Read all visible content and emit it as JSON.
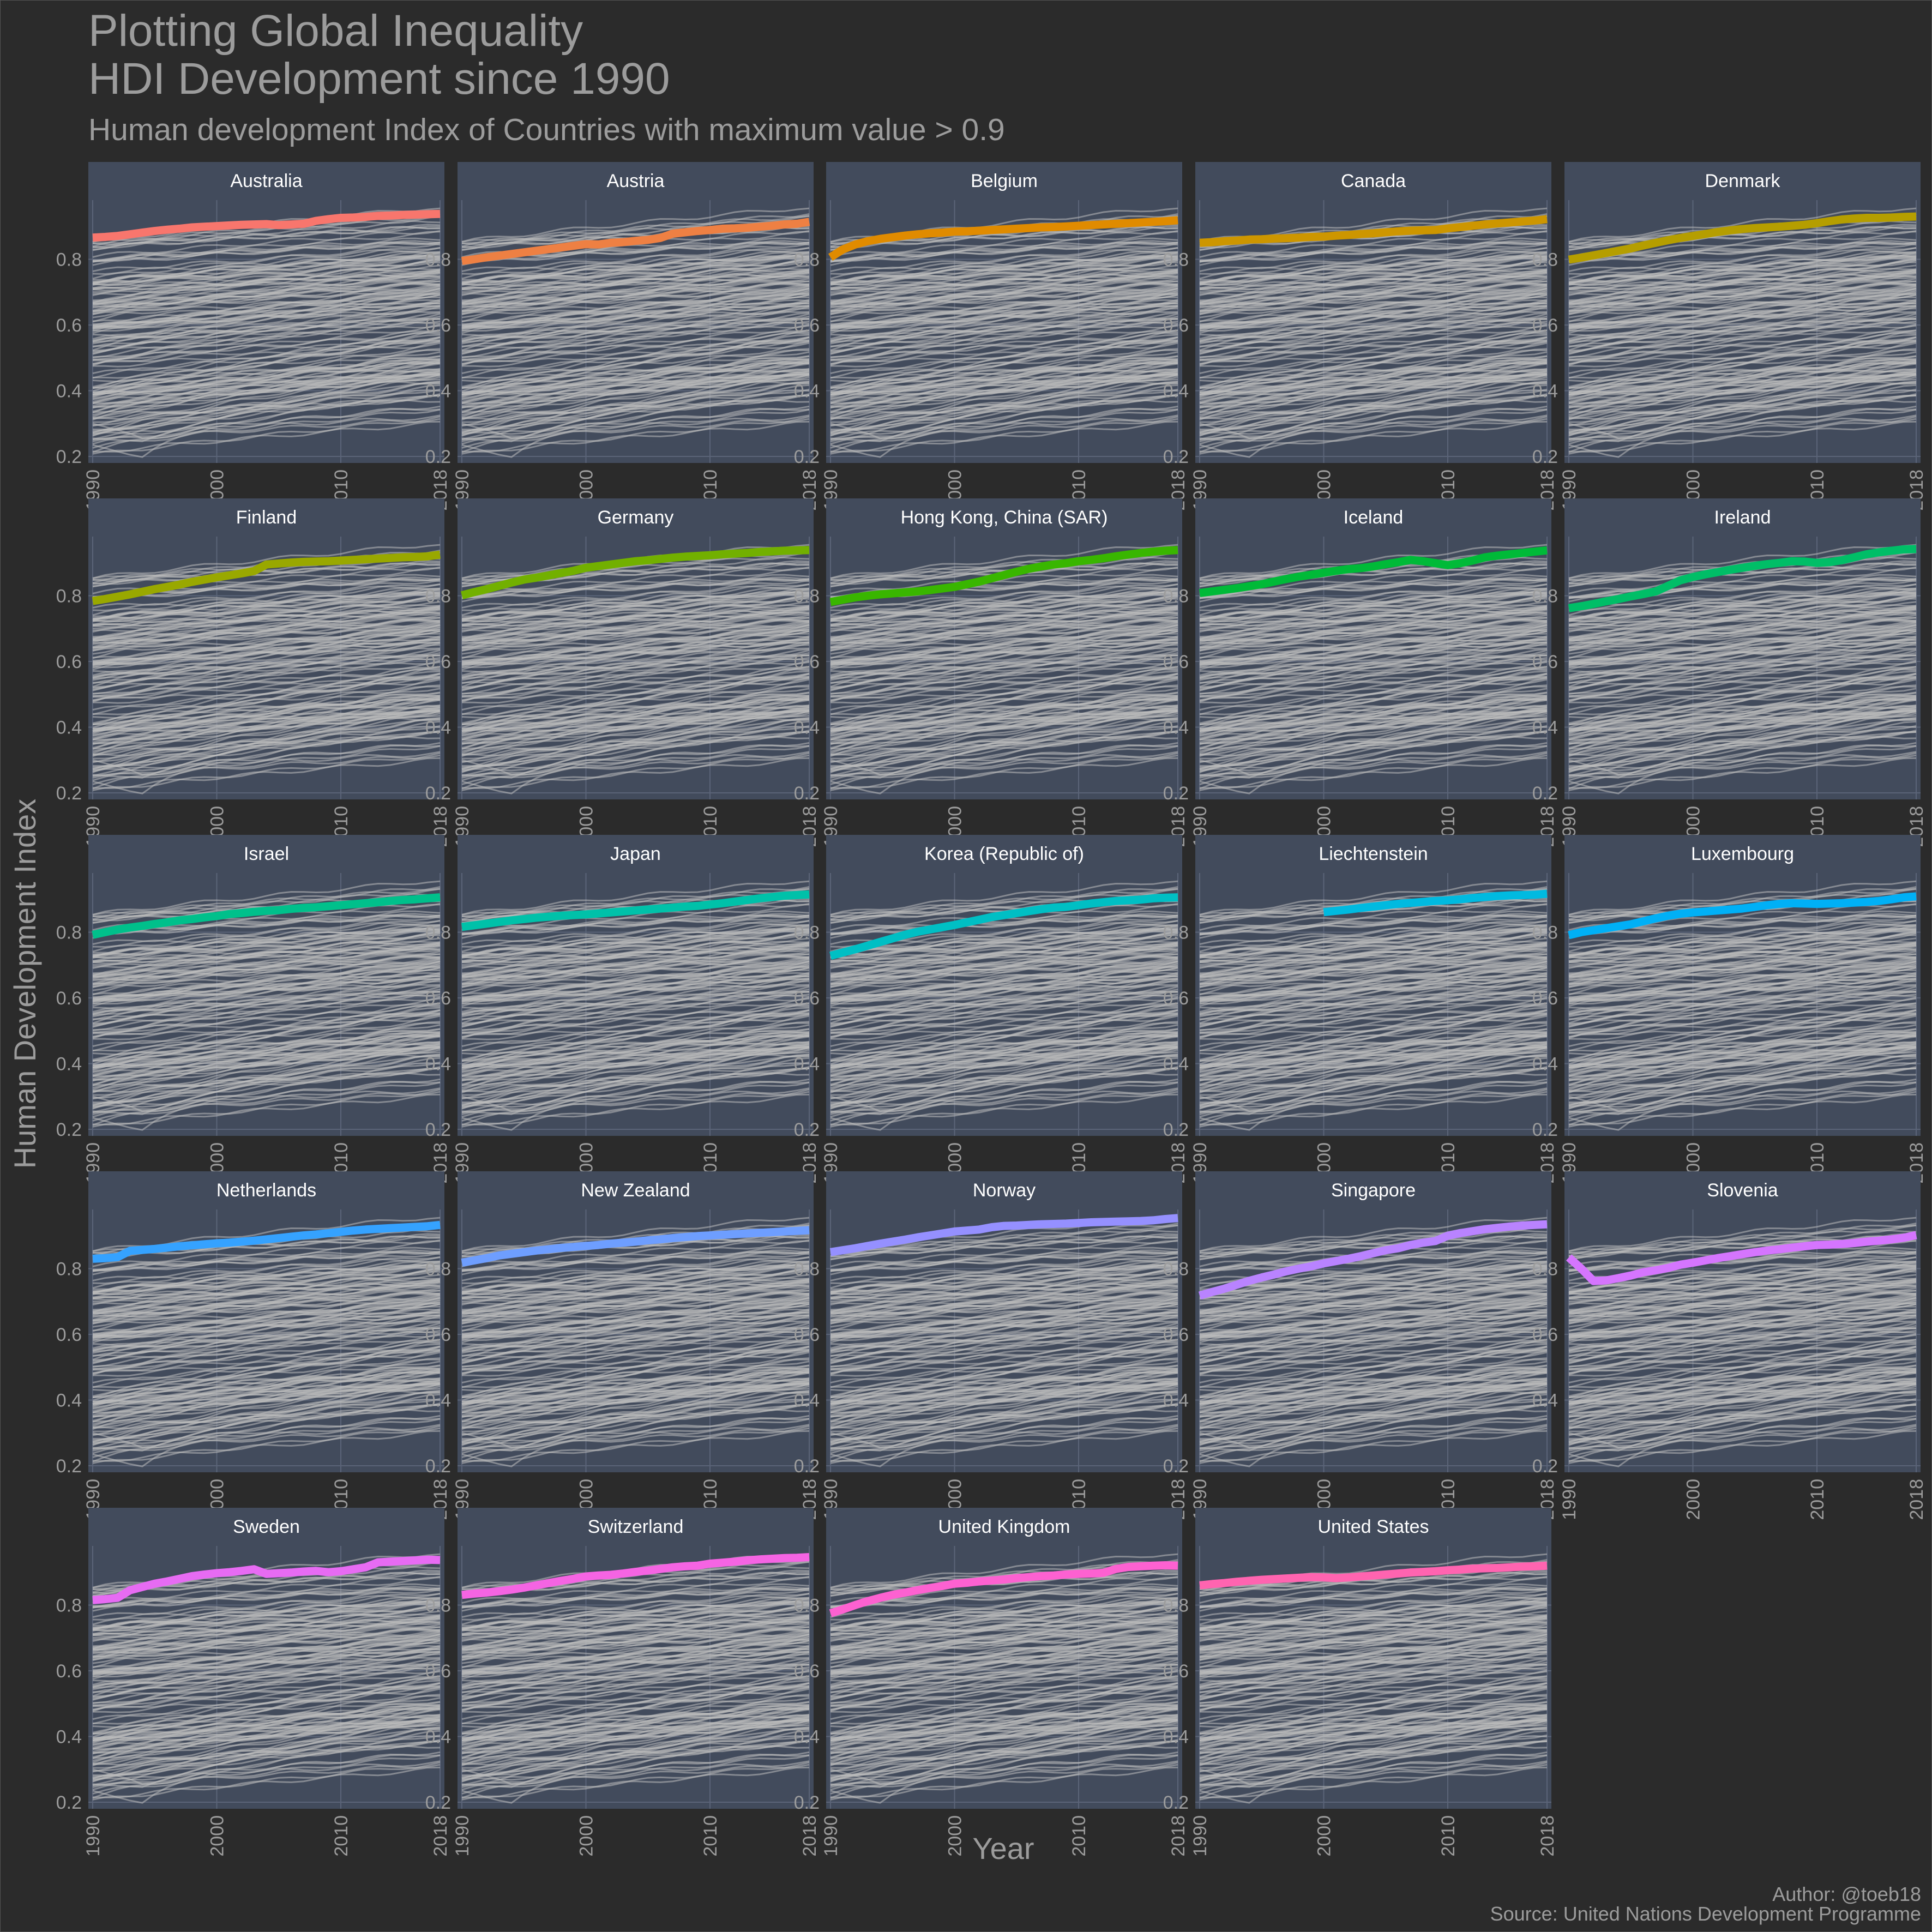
{
  "page": {
    "title_line_1": "Plotting Global Inequality",
    "title_line_2": "HDI Development since 1990",
    "subtitle": "Human development Index of Countries with maximum value > 0.9",
    "x_axis_title": "Year",
    "y_axis_title": "Human Development Index",
    "caption_author": "Author: @toeb18",
    "caption_source": "Source: United Nations Development Programme",
    "colors": {
      "background": "#2b2b2b",
      "panel": "#424b5c",
      "strip": "#424b5c",
      "grid": "#5b6478",
      "background_lines": "#bdbdbd",
      "text": "#9c9c9c"
    }
  },
  "chart_data": {
    "type": "line",
    "facet_by": "country",
    "facet_columns": 5,
    "x": [
      1990,
      1991,
      1992,
      1993,
      1994,
      1995,
      1996,
      1997,
      1998,
      1999,
      2000,
      2001,
      2002,
      2003,
      2004,
      2005,
      2006,
      2007,
      2008,
      2009,
      2010,
      2011,
      2012,
      2013,
      2014,
      2015,
      2016,
      2017,
      2018
    ],
    "xlim": [
      1990,
      2018
    ],
    "x_ticks": [
      1990,
      2000,
      2010,
      2018
    ],
    "ylim": [
      0.18,
      0.98
    ],
    "y_ticks": [
      0.2,
      0.4,
      0.6,
      0.8
    ],
    "grid": true,
    "legend": "none",
    "background_series_note_visible": false,
    "series": [
      {
        "name": "Australia",
        "color": "#f8766d",
        "values": [
          0.866,
          0.868,
          0.871,
          0.876,
          0.881,
          0.886,
          0.89,
          0.893,
          0.897,
          0.899,
          0.901,
          0.903,
          0.905,
          0.906,
          0.907,
          0.904,
          0.906,
          0.908,
          0.917,
          0.922,
          0.926,
          0.927,
          0.929,
          0.932,
          0.933,
          0.935,
          0.936,
          0.937,
          0.938
        ]
      },
      {
        "name": "Austria",
        "color": "#ee8043",
        "values": [
          0.795,
          0.8,
          0.806,
          0.811,
          0.816,
          0.821,
          0.826,
          0.831,
          0.836,
          0.841,
          0.846,
          0.845,
          0.85,
          0.852,
          0.856,
          0.859,
          0.865,
          0.878,
          0.882,
          0.886,
          0.889,
          0.893,
          0.894,
          0.896,
          0.899,
          0.902,
          0.906,
          0.908,
          0.914
        ]
      },
      {
        "name": "Belgium",
        "color": "#e08b00",
        "values": [
          0.806,
          0.83,
          0.845,
          0.855,
          0.862,
          0.867,
          0.872,
          0.876,
          0.879,
          0.881,
          0.884,
          0.885,
          0.887,
          0.889,
          0.891,
          0.893,
          0.895,
          0.897,
          0.898,
          0.9,
          0.902,
          0.904,
          0.906,
          0.908,
          0.91,
          0.912,
          0.914,
          0.916,
          0.919
        ]
      },
      {
        "name": "Canada",
        "color": "#cd9600",
        "values": [
          0.85,
          0.852,
          0.855,
          0.857,
          0.86,
          0.861,
          0.863,
          0.864,
          0.866,
          0.868,
          0.869,
          0.872,
          0.874,
          0.877,
          0.879,
          0.882,
          0.885,
          0.887,
          0.888,
          0.889,
          0.894,
          0.898,
          0.902,
          0.906,
          0.909,
          0.912,
          0.915,
          0.918,
          0.922
        ]
      },
      {
        "name": "Denmark",
        "color": "#b59e00",
        "values": [
          0.799,
          0.805,
          0.812,
          0.819,
          0.826,
          0.833,
          0.842,
          0.85,
          0.858,
          0.865,
          0.871,
          0.877,
          0.883,
          0.888,
          0.892,
          0.895,
          0.897,
          0.899,
          0.902,
          0.905,
          0.91,
          0.916,
          0.921,
          0.924,
          0.926,
          0.926,
          0.927,
          0.929,
          0.93
        ]
      },
      {
        "name": "Finland",
        "color": "#99a800",
        "values": [
          0.784,
          0.79,
          0.797,
          0.804,
          0.812,
          0.82,
          0.827,
          0.834,
          0.842,
          0.849,
          0.856,
          0.862,
          0.868,
          0.875,
          0.895,
          0.898,
          0.901,
          0.903,
          0.904,
          0.905,
          0.907,
          0.909,
          0.911,
          0.913,
          0.915,
          0.917,
          0.918,
          0.92,
          0.925
        ]
      },
      {
        "name": "Germany",
        "color": "#72b000",
        "values": [
          0.801,
          0.811,
          0.82,
          0.83,
          0.84,
          0.849,
          0.855,
          0.862,
          0.869,
          0.876,
          0.885,
          0.89,
          0.895,
          0.9,
          0.905,
          0.908,
          0.912,
          0.916,
          0.919,
          0.921,
          0.923,
          0.926,
          0.928,
          0.93,
          0.933,
          0.935,
          0.937,
          0.938,
          0.939
        ]
      },
      {
        "name": "Hong Kong, China (SAR)",
        "color": "#39b600",
        "values": [
          0.781,
          0.788,
          0.795,
          0.8,
          0.804,
          0.807,
          0.81,
          0.813,
          0.817,
          0.822,
          0.827,
          0.835,
          0.843,
          0.853,
          0.863,
          0.873,
          0.882,
          0.889,
          0.895,
          0.899,
          0.905,
          0.909,
          0.914,
          0.92,
          0.925,
          0.93,
          0.934,
          0.937,
          0.939
        ]
      },
      {
        "name": "Iceland",
        "color": "#00ba38",
        "values": [
          0.808,
          0.813,
          0.818,
          0.823,
          0.829,
          0.835,
          0.843,
          0.851,
          0.858,
          0.864,
          0.87,
          0.876,
          0.881,
          0.884,
          0.889,
          0.896,
          0.902,
          0.909,
          0.905,
          0.899,
          0.893,
          0.899,
          0.907,
          0.917,
          0.922,
          0.926,
          0.93,
          0.934,
          0.938
        ]
      },
      {
        "name": "Ireland",
        "color": "#00be67",
        "values": [
          0.762,
          0.768,
          0.775,
          0.783,
          0.79,
          0.798,
          0.805,
          0.813,
          0.83,
          0.847,
          0.857,
          0.865,
          0.872,
          0.879,
          0.885,
          0.891,
          0.896,
          0.9,
          0.905,
          0.904,
          0.9,
          0.902,
          0.908,
          0.917,
          0.926,
          0.932,
          0.937,
          0.941,
          0.942
        ]
      },
      {
        "name": "Israel",
        "color": "#00c08b",
        "values": [
          0.792,
          0.8,
          0.808,
          0.814,
          0.819,
          0.825,
          0.83,
          0.836,
          0.84,
          0.845,
          0.849,
          0.855,
          0.858,
          0.862,
          0.865,
          0.867,
          0.871,
          0.874,
          0.876,
          0.879,
          0.882,
          0.885,
          0.888,
          0.891,
          0.895,
          0.898,
          0.9,
          0.903,
          0.906
        ]
      },
      {
        "name": "Japan",
        "color": "#00c1a9",
        "values": [
          0.816,
          0.821,
          0.826,
          0.831,
          0.836,
          0.84,
          0.844,
          0.847,
          0.85,
          0.852,
          0.854,
          0.857,
          0.86,
          0.863,
          0.866,
          0.869,
          0.872,
          0.875,
          0.878,
          0.88,
          0.884,
          0.888,
          0.893,
          0.898,
          0.903,
          0.907,
          0.911,
          0.913,
          0.915
        ]
      },
      {
        "name": "Korea (Republic of)",
        "color": "#00bfc4",
        "values": [
          0.728,
          0.738,
          0.748,
          0.759,
          0.77,
          0.781,
          0.792,
          0.801,
          0.808,
          0.815,
          0.822,
          0.83,
          0.838,
          0.846,
          0.852,
          0.858,
          0.864,
          0.87,
          0.875,
          0.877,
          0.882,
          0.887,
          0.891,
          0.895,
          0.897,
          0.899,
          0.903,
          0.905,
          0.906
        ]
      },
      {
        "name": "Liechtenstein",
        "color": "#00bae0",
        "values": [
          null,
          null,
          null,
          null,
          null,
          null,
          null,
          null,
          null,
          null,
          0.861,
          0.865,
          0.869,
          0.874,
          0.878,
          0.882,
          0.886,
          0.889,
          0.892,
          0.895,
          0.897,
          0.9,
          0.904,
          0.907,
          0.91,
          0.912,
          0.913,
          0.914,
          0.917
        ]
      },
      {
        "name": "Luxembourg",
        "color": "#00b0f6",
        "values": [
          0.791,
          0.8,
          0.806,
          0.812,
          0.818,
          0.824,
          0.833,
          0.842,
          0.85,
          0.856,
          0.86,
          0.863,
          0.866,
          0.869,
          0.872,
          0.877,
          0.882,
          0.886,
          0.888,
          0.887,
          0.886,
          0.887,
          0.888,
          0.89,
          0.892,
          0.895,
          0.9,
          0.906,
          0.909
        ]
      },
      {
        "name": "Netherlands",
        "color": "#35a2ff",
        "values": [
          0.83,
          0.832,
          0.835,
          0.854,
          0.857,
          0.86,
          0.864,
          0.868,
          0.871,
          0.874,
          0.877,
          0.879,
          0.882,
          0.885,
          0.889,
          0.893,
          0.897,
          0.901,
          0.904,
          0.908,
          0.912,
          0.916,
          0.919,
          0.921,
          0.923,
          0.925,
          0.927,
          0.929,
          0.933
        ]
      },
      {
        "name": "New Zealand",
        "color": "#6e9eff",
        "values": [
          0.818,
          0.825,
          0.832,
          0.84,
          0.845,
          0.85,
          0.855,
          0.859,
          0.863,
          0.866,
          0.869,
          0.872,
          0.876,
          0.879,
          0.882,
          0.886,
          0.889,
          0.893,
          0.896,
          0.899,
          0.901,
          0.903,
          0.905,
          0.907,
          0.909,
          0.911,
          0.913,
          0.915,
          0.917
        ]
      },
      {
        "name": "Norway",
        "color": "#9590ff",
        "values": [
          0.85,
          0.856,
          0.862,
          0.869,
          0.876,
          0.882,
          0.888,
          0.895,
          0.901,
          0.907,
          0.913,
          0.916,
          0.919,
          0.926,
          0.93,
          0.931,
          0.933,
          0.935,
          0.936,
          0.937,
          0.939,
          0.941,
          0.942,
          0.943,
          0.944,
          0.945,
          0.947,
          0.951,
          0.954
        ]
      },
      {
        "name": "Singapore",
        "color": "#b983ff",
        "values": [
          0.718,
          0.729,
          0.739,
          0.751,
          0.763,
          0.773,
          0.782,
          0.792,
          0.8,
          0.807,
          0.816,
          0.823,
          0.83,
          0.838,
          0.847,
          0.856,
          0.862,
          0.872,
          0.879,
          0.884,
          0.9,
          0.908,
          0.914,
          0.92,
          0.924,
          0.928,
          0.931,
          0.933,
          0.935
        ]
      },
      {
        "name": "Slovenia",
        "color": "#d575fe",
        "values": [
          0.834,
          0.8,
          0.762,
          0.764,
          0.771,
          0.779,
          0.789,
          0.795,
          0.802,
          0.812,
          0.818,
          0.825,
          0.832,
          0.838,
          0.844,
          0.85,
          0.855,
          0.859,
          0.864,
          0.868,
          0.872,
          0.873,
          0.875,
          0.878,
          0.882,
          0.885,
          0.889,
          0.894,
          0.902
        ]
      },
      {
        "name": "Sweden",
        "color": "#e76bf3",
        "values": [
          0.815,
          0.818,
          0.822,
          0.845,
          0.855,
          0.865,
          0.872,
          0.88,
          0.888,
          0.893,
          0.897,
          0.9,
          0.904,
          0.909,
          0.895,
          0.897,
          0.899,
          0.902,
          0.904,
          0.9,
          0.903,
          0.909,
          0.915,
          0.93,
          0.932,
          0.934,
          0.936,
          0.938,
          0.937
        ]
      },
      {
        "name": "Switzerland",
        "color": "#f564e3",
        "values": [
          0.831,
          0.835,
          0.838,
          0.842,
          0.847,
          0.853,
          0.86,
          0.867,
          0.874,
          0.88,
          0.887,
          0.89,
          0.892,
          0.896,
          0.901,
          0.905,
          0.91,
          0.915,
          0.918,
          0.92,
          0.926,
          0.929,
          0.932,
          0.936,
          0.939,
          0.941,
          0.943,
          0.944,
          0.946
        ]
      },
      {
        "name": "United Kingdom",
        "color": "#fd61d1",
        "values": [
          0.775,
          0.787,
          0.8,
          0.812,
          0.822,
          0.831,
          0.838,
          0.845,
          0.852,
          0.858,
          0.865,
          0.868,
          0.872,
          0.875,
          0.878,
          0.882,
          0.885,
          0.888,
          0.89,
          0.893,
          0.895,
          0.896,
          0.898,
          0.91,
          0.916,
          0.918,
          0.92,
          0.921,
          0.92
        ]
      },
      {
        "name": "United States",
        "color": "#ff64b0",
        "values": [
          0.86,
          0.864,
          0.867,
          0.871,
          0.874,
          0.877,
          0.879,
          0.881,
          0.883,
          0.885,
          0.884,
          0.882,
          0.884,
          0.887,
          0.89,
          0.893,
          0.896,
          0.899,
          0.901,
          0.903,
          0.906,
          0.908,
          0.911,
          0.912,
          0.913,
          0.915,
          0.917,
          0.918,
          0.92
        ]
      }
    ]
  }
}
